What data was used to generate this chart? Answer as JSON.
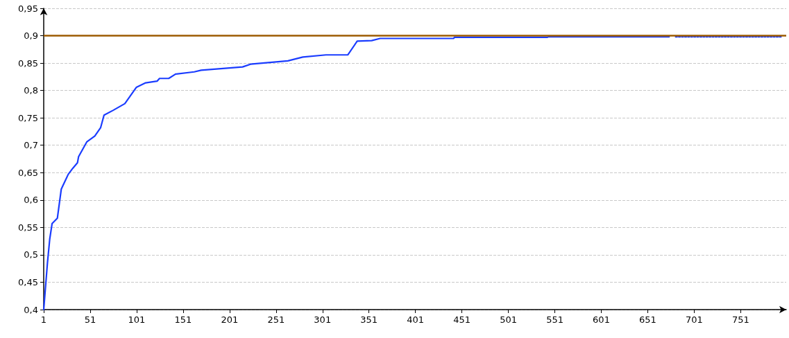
{
  "chart_data": {
    "type": "line",
    "xlim": [
      1,
      800
    ],
    "xticks": [
      1,
      51,
      101,
      151,
      201,
      251,
      301,
      351,
      401,
      451,
      501,
      551,
      601,
      651,
      701,
      751
    ],
    "ylim": [
      0.4,
      0.95
    ],
    "yticks": [
      {
        "value": 0.4,
        "label": "0,4"
      },
      {
        "value": 0.45,
        "label": "0,45"
      },
      {
        "value": 0.5,
        "label": "0,5"
      },
      {
        "value": 0.55,
        "label": "0,55"
      },
      {
        "value": 0.6,
        "label": "0,6"
      },
      {
        "value": 0.65,
        "label": "0,65"
      },
      {
        "value": 0.7,
        "label": "0,7"
      },
      {
        "value": 0.75,
        "label": "0,75"
      },
      {
        "value": 0.8,
        "label": "0,8"
      },
      {
        "value": 0.85,
        "label": "0,85"
      },
      {
        "value": 0.9,
        "label": "0,9"
      },
      {
        "value": 0.95,
        "label": "0,95"
      }
    ],
    "grid": "y",
    "marker": "none",
    "series": [
      {
        "color": "#1a3cff",
        "line_style": "solid",
        "x": [
          1,
          5,
          7.5,
          10,
          15.7,
          19.9,
          27.4,
          32.3,
          37.3,
          38.5,
          47.3,
          56,
          62.2,
          65.9,
          75.9,
          88.3,
          100.8,
          110.7,
          123,
          125.6,
          135.5,
          143,
          163,
          170.4,
          215,
          223.5,
          263.7,
          279.8,
          304.7,
          328.3,
          338.3,
          353.9,
          363,
          409,
          442,
          443,
          543,
          544,
          674
        ],
        "values": [
          0.4,
          0.485,
          0.529,
          0.557,
          0.567,
          0.62,
          0.647,
          0.658,
          0.668,
          0.679,
          0.706,
          0.717,
          0.732,
          0.755,
          0.764,
          0.776,
          0.806,
          0.814,
          0.817,
          0.822,
          0.822,
          0.83,
          0.834,
          0.837,
          0.843,
          0.848,
          0.854,
          0.861,
          0.865,
          0.865,
          0.89,
          0.891,
          0.895,
          0.895,
          0.895,
          0.897,
          0.897,
          0.898,
          0.898
        ]
      },
      {
        "color": "#1a3cff",
        "line_style": "dotted",
        "x": [
          681,
          795
        ],
        "values": [
          0.898,
          0.898
        ]
      }
    ],
    "ref_lines": [
      {
        "axis": "y",
        "value": 0.9,
        "color": "#9c5a00",
        "line_style": "solid"
      }
    ]
  }
}
